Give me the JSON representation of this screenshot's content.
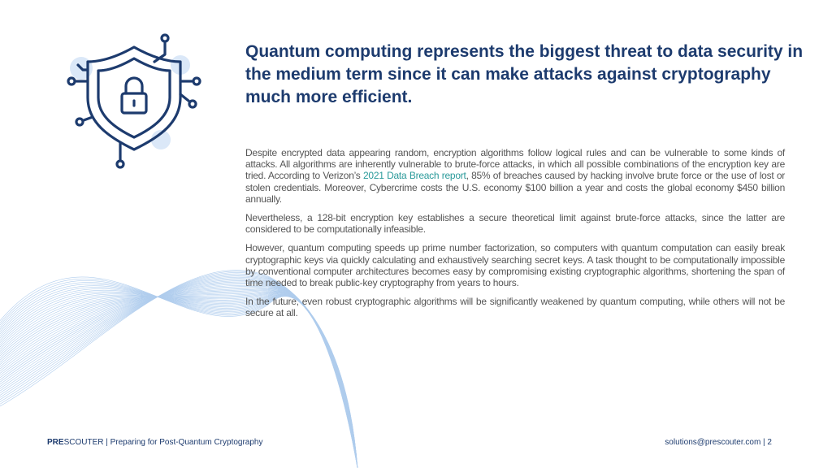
{
  "header": {
    "title": "Quantum computing represents the biggest threat to data security in the medium term since it can make attacks against cryptography much more efficient."
  },
  "body": {
    "intro": {
      "text_before": "Despite encrypted data appearing random, encryption algorithms follow logical rules and can be vulnerable to some kinds of attacks. All algorithms are inherently vulnerable to brute-force attacks, in which all possible combinations of the encryption key are tried. According to Verizon’s ",
      "link": "2021 Data Breach report",
      "text_after": ", 85% of breaches caused by hacking involve brute force or the use of lost or stolen credentials. Moreover, Cybercrime costs the U.S. economy $100 billion a year and costs the global economy $450 billion annually."
    },
    "paragraphs": [
      "Nevertheless, a 128-bit encryption key establishes a secure theoretical limit against brute-force attacks, since the latter are considered to be computationally infeasible.",
      "However, quantum computing speeds up prime number factorization, so computers with quantum computation can easily break cryptographic keys via quickly calculating and exhaustively searching secret keys. A task thought to be computationally impossible by conventional computer architectures becomes easy by compromising existing cryptographic algorithms, shortening the span of time needed to break public-key cryptography from years to hours.",
      "In the future, even robust cryptographic algorithms will be significantly weakened by quantum computing, while others will not be secure at all."
    ]
  },
  "footer": {
    "brand_bold": "PRE",
    "brand": "SCOUTER",
    "subtitle": " | Preparing for Post-Quantum Cryptography",
    "contact": "solutions@prescouter.com | 2"
  }
}
